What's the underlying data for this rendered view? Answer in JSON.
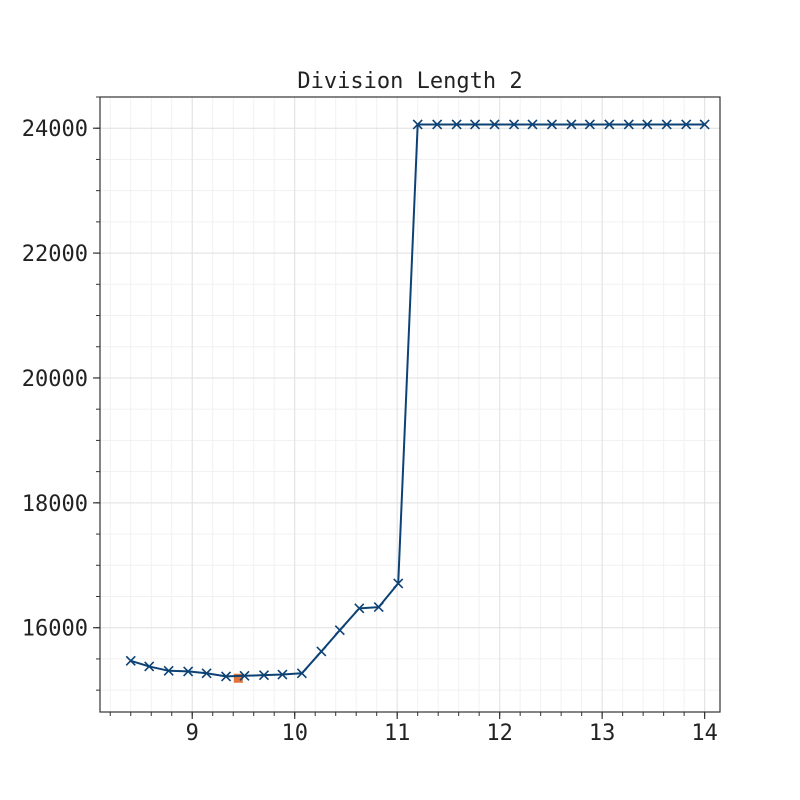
{
  "chart_data": {
    "type": "line",
    "title": "Division Length 2",
    "xlabel": "",
    "ylabel": "",
    "xlim": [
      8.1,
      14.15
    ],
    "ylim": [
      14650,
      24500
    ],
    "x_ticks": [
      9,
      10,
      11,
      12,
      13,
      14
    ],
    "x_tick_labels": [
      "9",
      "10",
      "11",
      "12",
      "13",
      "14"
    ],
    "x_minor_step": 0.2,
    "y_ticks": [
      16000,
      18000,
      20000,
      22000,
      24000
    ],
    "y_tick_labels": [
      "16000",
      "18000",
      "20000",
      "22000",
      "24000"
    ],
    "y_minor_step": 500,
    "grid": true,
    "legend": "none",
    "series": [
      {
        "color": "#0d4275",
        "marker": "x",
        "x": [
          8.4,
          8.58,
          8.77,
          8.96,
          9.14,
          9.33,
          9.51,
          9.7,
          9.88,
          10.07,
          10.26,
          10.44,
          10.63,
          10.82,
          11.01,
          11.2,
          11.39,
          11.58,
          11.76,
          11.95,
          12.14,
          12.32,
          12.51,
          12.7,
          12.88,
          13.07,
          13.26,
          13.44,
          13.63,
          13.82,
          14.0
        ],
        "y": [
          15470,
          15380,
          15310,
          15300,
          15270,
          15220,
          15230,
          15240,
          15250,
          15270,
          15620,
          15960,
          16310,
          16330,
          16710,
          24060,
          24060,
          24060,
          24060,
          24060,
          24060,
          24060,
          24060,
          24060,
          24060,
          24060,
          24060,
          24060,
          24060,
          24060,
          24060
        ]
      }
    ],
    "highlight_point": {
      "x": 9.45,
      "y": 15190,
      "color": "#e0743a"
    }
  }
}
